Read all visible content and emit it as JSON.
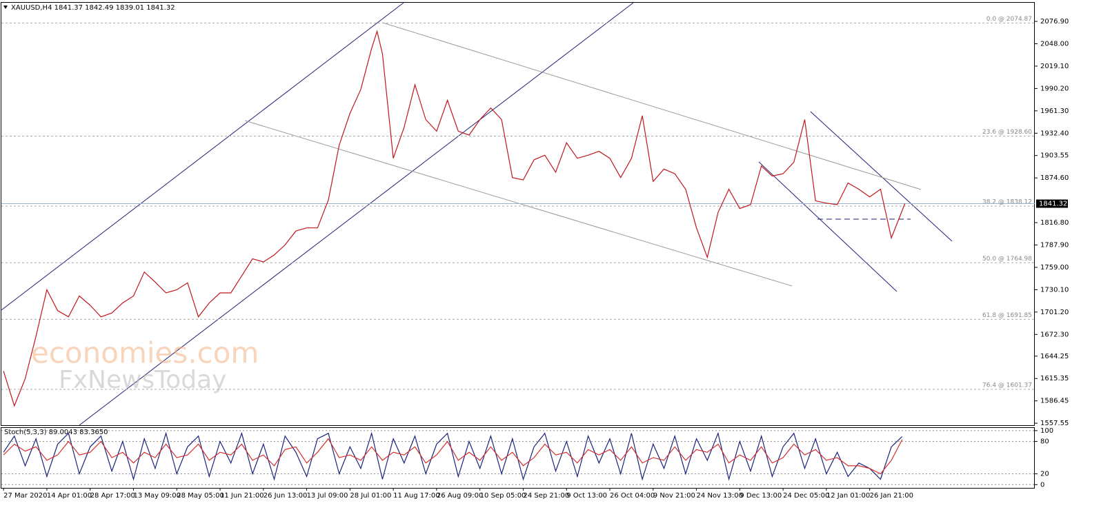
{
  "chart_data": [
    {
      "type": "line",
      "title": "XAUUSD,H4  1841.37 1842.49 1839.01 1841.32",
      "x": [
        0,
        20,
        40,
        60,
        80,
        100,
        120,
        140,
        160,
        180,
        200,
        220,
        240,
        260,
        280,
        300,
        320,
        340,
        360,
        380,
        400,
        420,
        440,
        460,
        480,
        500,
        520,
        540,
        560,
        580,
        600,
        620,
        640,
        660,
        680,
        690,
        700,
        720,
        740,
        760,
        780,
        800,
        820,
        840,
        860,
        880,
        900,
        920,
        940,
        960,
        980,
        1000,
        1020,
        1040,
        1060,
        1080,
        1100,
        1120,
        1140,
        1160,
        1180,
        1200,
        1220,
        1240,
        1260,
        1280,
        1300,
        1320,
        1340,
        1360,
        1380,
        1400,
        1420,
        1440,
        1460,
        1480,
        1500,
        1520,
        1540,
        1560,
        1580,
        1600,
        1620,
        1640,
        1665
      ],
      "series": [
        {
          "color": "#c0161b",
          "values": [
            1625,
            1580,
            1615,
            1670,
            1730,
            1703,
            1695,
            1722,
            1710,
            1695,
            1700,
            1713,
            1722,
            1753,
            1740,
            1726,
            1730,
            1739,
            1695,
            1713,
            1726,
            1726,
            1748,
            1770,
            1766,
            1775,
            1788,
            1806,
            1810,
            1810,
            1846,
            1917,
            1958,
            1989,
            2042,
            2064,
            2035,
            1900,
            1940,
            1995,
            1950,
            1935,
            1975,
            1935,
            1930,
            1950,
            1965,
            1950,
            1875,
            1872,
            1898,
            1904,
            1882,
            1920,
            1900,
            1904,
            1909,
            1900,
            1875,
            1900,
            1955,
            1870,
            1886,
            1880,
            1860,
            1810,
            1772,
            1830,
            1860,
            1835,
            1840,
            1890,
            1877,
            1880,
            1895,
            1950,
            1845,
            1842,
            1840,
            1868,
            1860,
            1850,
            1860,
            1797,
            1841.32
          ]
        }
      ],
      "xlim": [
        -4,
        1905
      ],
      "ylim": [
        1555,
        2101
      ],
      "xticks": [
        {
          "value": 0,
          "label": "27 Mar 2020"
        },
        {
          "value": 80,
          "label": "14 Apr 01:00"
        },
        {
          "value": 160,
          "label": "28 Apr 17:00"
        },
        {
          "value": 240,
          "label": "13 May 09:00"
        },
        {
          "value": 320,
          "label": "28 May 05:00"
        },
        {
          "value": 400,
          "label": "11 Jun 21:00"
        },
        {
          "value": 480,
          "label": "26 Jun 13:00"
        },
        {
          "value": 560,
          "label": "13 Jul 09:00"
        },
        {
          "value": 640,
          "label": "28 Jul 01:00"
        },
        {
          "value": 720,
          "label": "11 Aug 17:00"
        },
        {
          "value": 800,
          "label": "26 Aug 09:00"
        },
        {
          "value": 880,
          "label": "10 Sep 05:00"
        },
        {
          "value": 960,
          "label": "24 Sep 21:00"
        },
        {
          "value": 1040,
          "label": "9 Oct 13:00"
        },
        {
          "value": 1120,
          "label": "26 Oct 04:00"
        },
        {
          "value": 1200,
          "label": "9 Nov 21:00"
        },
        {
          "value": 1280,
          "label": "24 Nov 13:00"
        },
        {
          "value": 1360,
          "label": "9 Dec 13:00"
        },
        {
          "value": 1440,
          "label": "24 Dec 05:00"
        },
        {
          "value": 1520,
          "label": "12 Jan 01:00"
        },
        {
          "value": 1600,
          "label": "26 Jan 21:00"
        }
      ],
      "yticks": [
        {
          "value": 2076.9,
          "label": "2076.90"
        },
        {
          "value": 2048,
          "label": "2048.00"
        },
        {
          "value": 2019.1,
          "label": "2019.10"
        },
        {
          "value": 1990.2,
          "label": "1990.20"
        },
        {
          "value": 1961.3,
          "label": "1961.30"
        },
        {
          "value": 1932.4,
          "label": "1932.40"
        },
        {
          "value": 1903.55,
          "label": "1903.55"
        },
        {
          "value": 1874.6,
          "label": "1874.60"
        },
        {
          "value": 1816.8,
          "label": "1816.80"
        },
        {
          "value": 1787.9,
          "label": "1787.90"
        },
        {
          "value": 1759,
          "label": "1759.00"
        },
        {
          "value": 1730.1,
          "label": "1730.10"
        },
        {
          "value": 1701.2,
          "label": "1701.20"
        },
        {
          "value": 1672.3,
          "label": "1672.30"
        },
        {
          "value": 1644.25,
          "label": "1644.25"
        },
        {
          "value": 1615.35,
          "label": "1615.35"
        },
        {
          "value": 1586.45,
          "label": "1586.45"
        },
        {
          "value": 1557.55,
          "label": "1557.55"
        }
      ],
      "fib_levels": [
        {
          "value": 2074.87,
          "label": "0.0 @ 2074.87"
        },
        {
          "value": 1928.6,
          "label": "23.6 @ 1928.60"
        },
        {
          "value": 1838.12,
          "label": "38.2 @ 1838.12"
        },
        {
          "value": 1764.98,
          "label": "50.0 @ 1764.98"
        },
        {
          "value": 1691.85,
          "label": "61.8 @ 1691.85"
        },
        {
          "value": 1601.37,
          "label": "76.4 @ 1601.37"
        }
      ],
      "current_price": 1841.32,
      "watermark": [
        "economies.com",
        "FxNewsToday"
      ],
      "grid": false
    },
    {
      "type": "line",
      "title": "Stoch(5,3,3) 89.0043 83.3650",
      "x": [
        0,
        20,
        40,
        60,
        80,
        100,
        120,
        140,
        160,
        180,
        200,
        220,
        240,
        260,
        280,
        300,
        320,
        340,
        360,
        380,
        400,
        420,
        440,
        460,
        480,
        500,
        520,
        540,
        560,
        580,
        600,
        620,
        640,
        660,
        680,
        700,
        720,
        740,
        760,
        780,
        800,
        820,
        840,
        860,
        880,
        900,
        920,
        940,
        960,
        980,
        1000,
        1020,
        1040,
        1060,
        1080,
        1100,
        1120,
        1140,
        1160,
        1180,
        1200,
        1220,
        1240,
        1260,
        1280,
        1300,
        1320,
        1340,
        1360,
        1380,
        1400,
        1420,
        1440,
        1460,
        1480,
        1500,
        1520,
        1540,
        1560,
        1580,
        1600,
        1620,
        1640,
        1660
      ],
      "series": [
        {
          "color": "#1a237e",
          "values": [
            60,
            90,
            35,
            85,
            15,
            75,
            95,
            20,
            70,
            90,
            25,
            80,
            10,
            85,
            30,
            95,
            20,
            70,
            90,
            15,
            80,
            40,
            95,
            20,
            75,
            10,
            90,
            60,
            15,
            85,
            95,
            20,
            70,
            30,
            95,
            10,
            85,
            40,
            90,
            20,
            75,
            95,
            15,
            80,
            30,
            90,
            20,
            85,
            10,
            70,
            95,
            25,
            80,
            15,
            90,
            40,
            85,
            20,
            95,
            10,
            75,
            30,
            90,
            20,
            85,
            45,
            95,
            10,
            80,
            25,
            90,
            15,
            70,
            95,
            30,
            85,
            20,
            60,
            15,
            40,
            30,
            10,
            70,
            89.0043
          ]
        },
        {
          "color": "#d32f2f",
          "values": [
            55,
            75,
            62,
            70,
            45,
            55,
            80,
            55,
            60,
            80,
            50,
            60,
            40,
            60,
            50,
            75,
            50,
            55,
            75,
            45,
            60,
            55,
            75,
            45,
            55,
            35,
            65,
            70,
            40,
            60,
            85,
            50,
            55,
            45,
            70,
            45,
            60,
            55,
            70,
            40,
            55,
            80,
            45,
            60,
            45,
            70,
            45,
            60,
            35,
            50,
            75,
            55,
            60,
            40,
            65,
            55,
            65,
            45,
            70,
            40,
            50,
            45,
            70,
            45,
            65,
            60,
            75,
            40,
            55,
            45,
            70,
            40,
            50,
            75,
            55,
            65,
            45,
            50,
            35,
            35,
            30,
            20,
            45,
            83.365
          ]
        }
      ],
      "xlim": [
        -4,
        1905
      ],
      "ylim": [
        -6,
        105
      ],
      "yticks": [
        0,
        20,
        80,
        100
      ],
      "grid": true
    }
  ]
}
